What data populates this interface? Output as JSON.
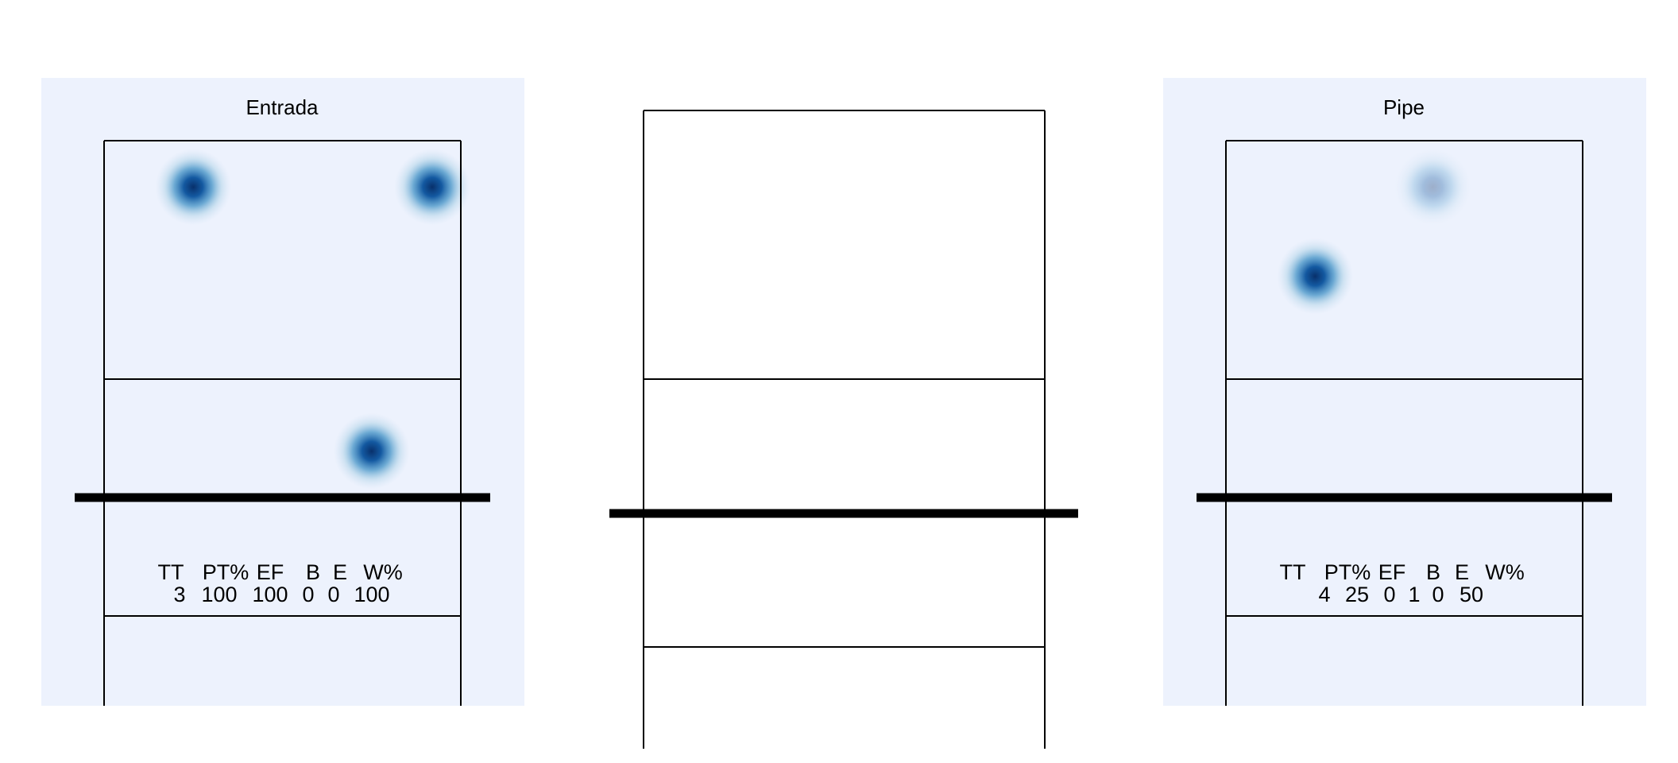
{
  "chart_data": [
    {
      "type": "heatmap",
      "title": "Entrada",
      "background": "#EDF2FD",
      "stats": {
        "headers": [
          "TT",
          "PT%",
          "EF",
          "B",
          "E",
          "W%"
        ],
        "values": [
          "3",
          "100",
          "100",
          "0",
          "0",
          "100"
        ]
      },
      "hotspots": [
        {
          "x": 0.25,
          "y": 0.87,
          "intensity": 1.0
        },
        {
          "x": 0.92,
          "y": 0.87,
          "intensity": 1.0
        },
        {
          "x": 0.75,
          "y": 0.13,
          "intensity": 1.0
        }
      ]
    },
    {
      "type": "heatmap",
      "title": "",
      "background": "#FFFFFF",
      "stats": {
        "headers": [],
        "values": []
      },
      "hotspots": []
    },
    {
      "type": "heatmap",
      "title": "Pipe",
      "background": "#EDF2FD",
      "stats": {
        "headers": [
          "TT",
          "PT%",
          "EF",
          "B",
          "E",
          "W%"
        ],
        "values": [
          "4",
          "25",
          "0",
          "1",
          "0",
          "50"
        ]
      },
      "hotspots": [
        {
          "x": 0.25,
          "y": 0.62,
          "intensity": 1.0
        },
        {
          "x": 0.58,
          "y": 0.87,
          "intensity": 0.35
        }
      ]
    }
  ],
  "colors": {
    "heat_peak": "#08519C",
    "heat_mid": "#4292C6",
    "heat_low": "#C6DBEF",
    "court_line": "#000000"
  }
}
